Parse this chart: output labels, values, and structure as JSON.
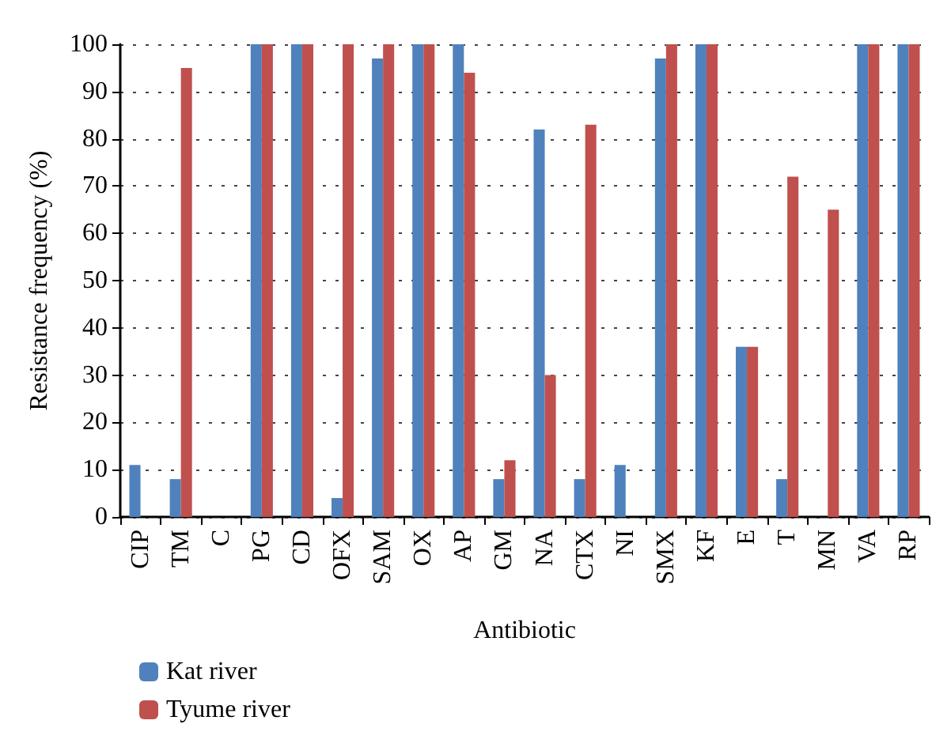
{
  "chart_data": {
    "type": "bar",
    "xlabel": "Antibiotic",
    "ylabel": "Resistance frequency (%)",
    "categories": [
      "CIP",
      "TM",
      "C",
      "PG",
      "CD",
      "OFX",
      "SAM",
      "OX",
      "AP",
      "GM",
      "NA",
      "CTX",
      "NI",
      "SMX",
      "KF",
      "E",
      "T",
      "MN",
      "VA",
      "RP"
    ],
    "series": [
      {
        "name": "Kat river",
        "color": "#4f81bd",
        "values": [
          11,
          8,
          0,
          100,
          100,
          4,
          97,
          100,
          100,
          8,
          82,
          8,
          11,
          97,
          100,
          36,
          8,
          0,
          100,
          100
        ]
      },
      {
        "name": "Tyume river",
        "color": "#c0504d",
        "values": [
          0,
          95,
          0,
          100,
          100,
          100,
          100,
          100,
          94,
          12,
          30,
          83,
          0,
          100,
          100,
          36,
          72,
          65,
          100,
          100
        ]
      }
    ],
    "ylim": [
      0,
      100
    ],
    "yticks": [
      0,
      10,
      20,
      30,
      40,
      50,
      60,
      70,
      80,
      90,
      100
    ],
    "grid": "y",
    "legend": "bottom left"
  }
}
